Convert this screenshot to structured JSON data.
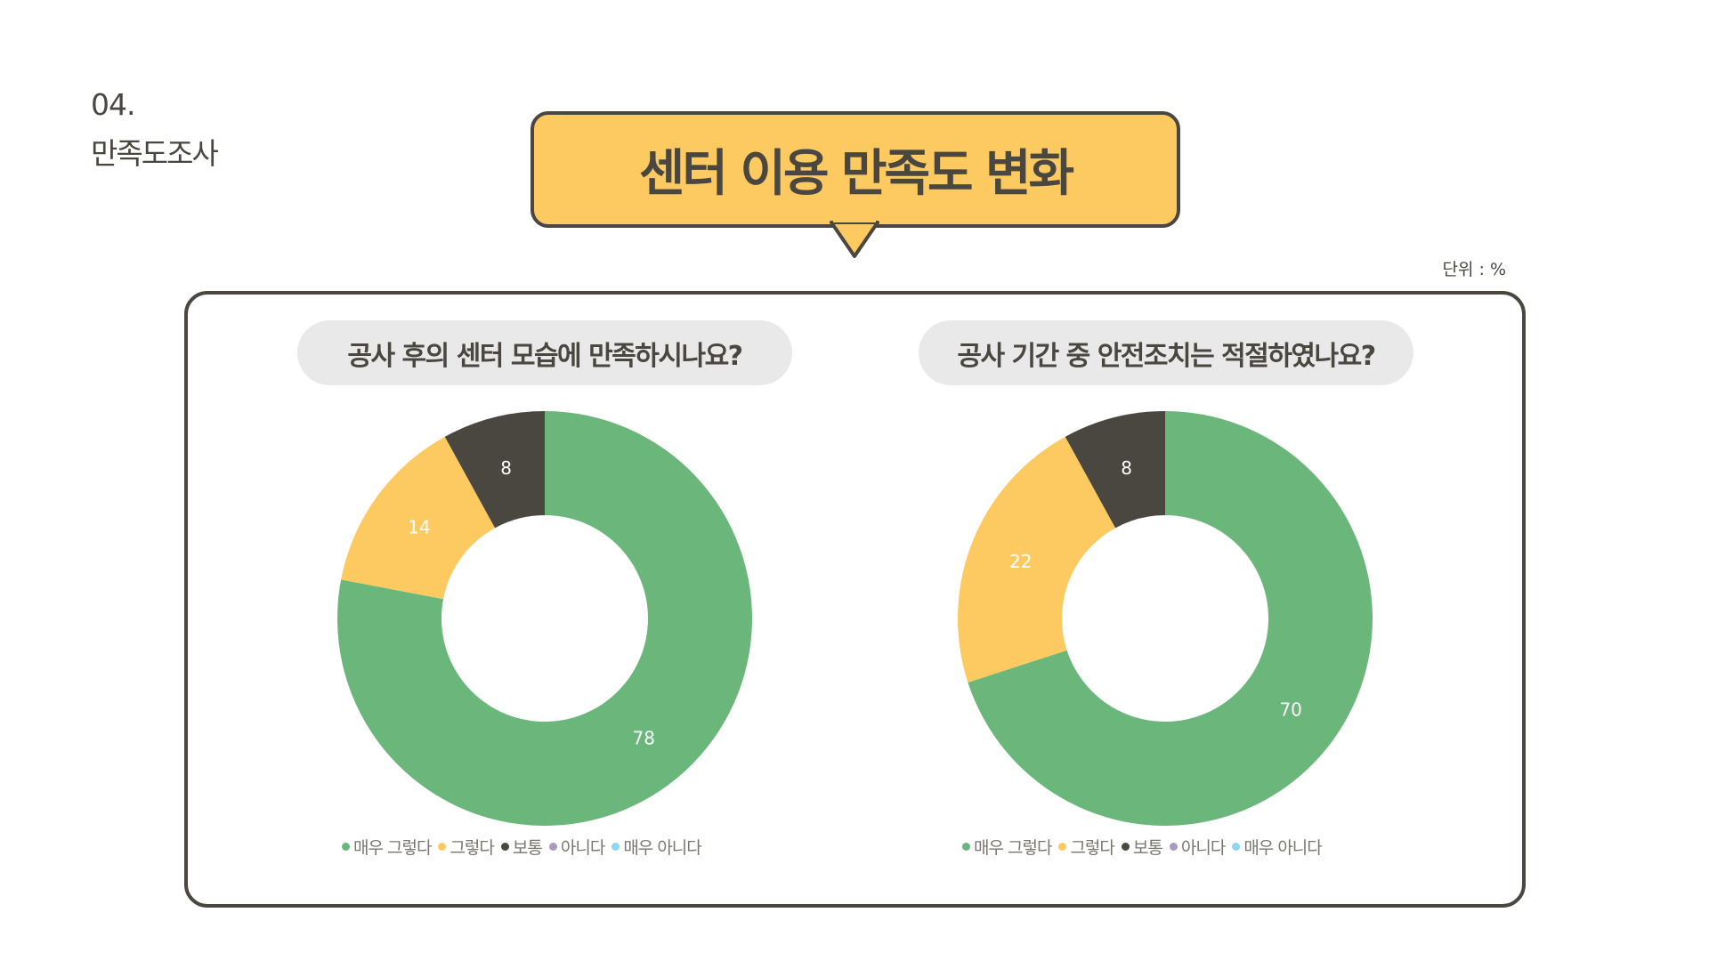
{
  "section": {
    "number": "04.",
    "title": "만족도조사"
  },
  "header": {
    "title": "센터 이용 만족도 변화"
  },
  "unit_label": "단위 : %",
  "colors": {
    "매우 그렇다": "#6bb77b",
    "그렇다": "#fcca60",
    "보통": "#4a4640",
    "아니다": "#a99bc0",
    "매우 아니다": "#8fd6f0"
  },
  "legend": [
    "매우 그렇다",
    "그렇다",
    "보통",
    "아니다",
    "매우 아니다"
  ],
  "chart_data": [
    {
      "type": "pie",
      "style": "donut",
      "title": "공사 후의 센터 모습에 만족하시나요?",
      "categories": [
        "매우 그렇다",
        "그렇다",
        "보통",
        "아니다",
        "매우 아니다"
      ],
      "values": [
        78,
        14,
        8,
        0,
        0
      ],
      "legend_position": "bottom"
    },
    {
      "type": "pie",
      "style": "donut",
      "title": "공사 기간 중 안전조치는 적절하였나요?",
      "categories": [
        "매우 그렇다",
        "그렇다",
        "보통",
        "아니다",
        "매우 아니다"
      ],
      "values": [
        70,
        22,
        8,
        0,
        0
      ],
      "legend_position": "bottom"
    }
  ]
}
